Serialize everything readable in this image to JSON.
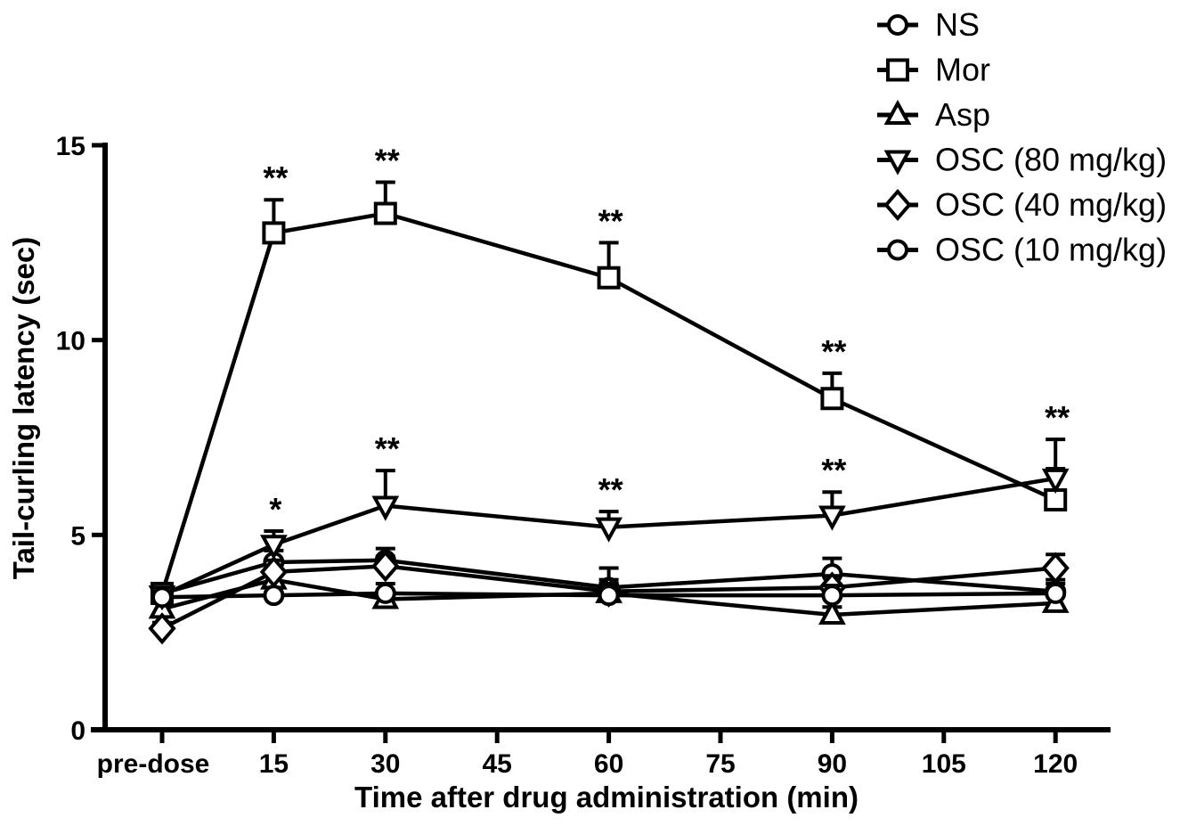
{
  "figure": {
    "background_color": "#ffffff",
    "ink_color": "#000000"
  },
  "chart_data": {
    "type": "line",
    "title": "",
    "xlabel": "Time after drug administration (min)",
    "ylabel": "Tail-curling latency (sec)",
    "x_tick_labels": [
      "pre-dose",
      "15",
      "30",
      "45",
      "60",
      "75",
      "90",
      "105",
      "120"
    ],
    "y_tick_labels": [
      "0",
      "5",
      "10",
      "15"
    ],
    "y_ticks": [
      0,
      5,
      10,
      15
    ],
    "ylim": [
      0,
      15
    ],
    "grid": false,
    "legend_position": "top-right",
    "point_tick_indices": [
      0,
      1,
      2,
      4,
      6,
      8
    ],
    "series": [
      {
        "name": "NS",
        "marker": "circle",
        "values": [
          3.5,
          4.3,
          4.35,
          3.65,
          4.0,
          3.55
        ],
        "errors_up": [
          0.2,
          0.3,
          0.3,
          0.5,
          0.4,
          0.3
        ],
        "sig": [
          "",
          "",
          "",
          "",
          "",
          ""
        ]
      },
      {
        "name": "Mor",
        "marker": "square",
        "values": [
          3.5,
          12.75,
          13.25,
          11.6,
          8.5,
          5.9
        ],
        "errors_up": [
          0.2,
          0.85,
          0.8,
          0.9,
          0.65,
          0.8
        ],
        "sig": [
          "",
          "**",
          "**",
          "**",
          "**",
          ""
        ]
      },
      {
        "name": "Asp",
        "marker": "triangle-up",
        "values": [
          3.1,
          3.85,
          3.35,
          3.5,
          2.95,
          3.25
        ],
        "errors_up": [
          0.15,
          0.2,
          0.2,
          0.25,
          0.2,
          0.2
        ],
        "sig": [
          "",
          "",
          "",
          "",
          "",
          ""
        ]
      },
      {
        "name": "OSC (80 mg/kg)",
        "marker": "triangle-down",
        "values": [
          3.45,
          4.75,
          5.75,
          5.2,
          5.5,
          6.45
        ],
        "errors_up": [
          0.15,
          0.35,
          0.9,
          0.4,
          0.6,
          1.0
        ],
        "sig": [
          "",
          "*",
          "**",
          "**",
          "**",
          "**"
        ]
      },
      {
        "name": "OSC (40 mg/kg)",
        "marker": "diamond",
        "values": [
          2.6,
          4.05,
          4.2,
          3.55,
          3.65,
          4.15
        ],
        "errors_up": [
          0.15,
          0.3,
          0.25,
          0.3,
          0.3,
          0.35
        ],
        "sig": [
          "",
          "",
          "",
          "",
          "",
          ""
        ]
      },
      {
        "name": "OSC (10 mg/kg)",
        "marker": "circle",
        "values": [
          3.4,
          3.45,
          3.5,
          3.45,
          3.45,
          3.5
        ],
        "errors_up": [
          0.15,
          0.2,
          0.25,
          0.3,
          0.25,
          0.25
        ],
        "sig": [
          "",
          "",
          "",
          "",
          "",
          ""
        ]
      }
    ]
  }
}
